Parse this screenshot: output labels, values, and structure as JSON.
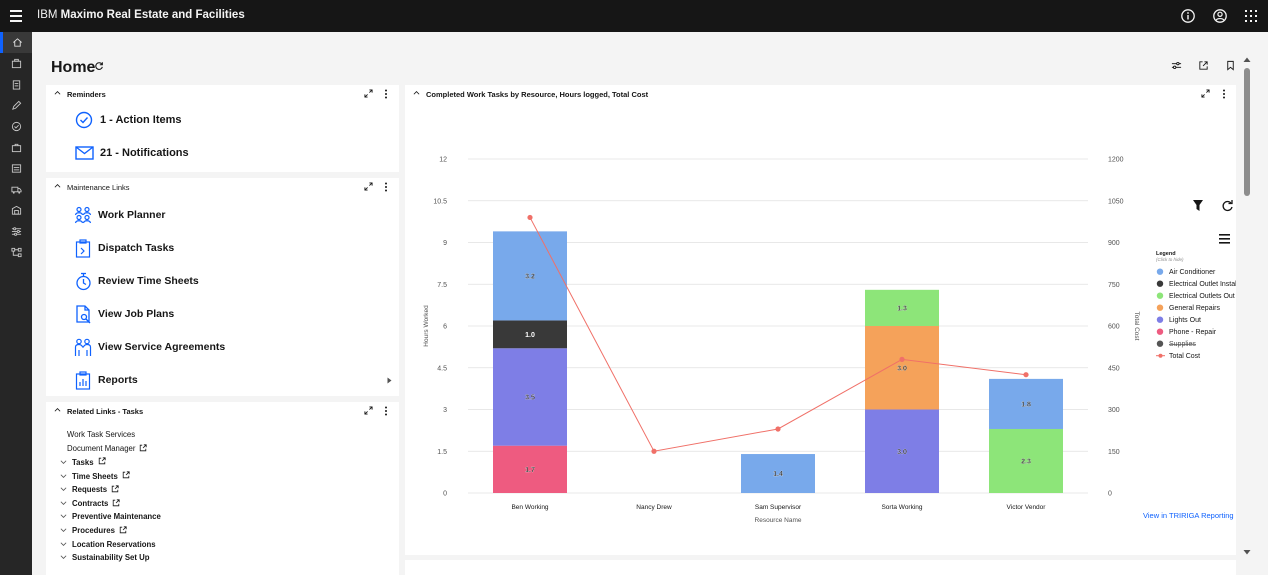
{
  "app": {
    "brand_company": "IBM",
    "brand_product": "Maximo Real Estate and Facilities"
  },
  "page": {
    "title": "Home"
  },
  "reminders": {
    "title": "Reminders",
    "items": [
      {
        "label": "1 - Action Items",
        "icon": "checkmark-circle-icon"
      },
      {
        "label": "21 - Notifications",
        "icon": "envelope-icon"
      }
    ]
  },
  "maintenance": {
    "title": "Maintenance Links",
    "items": [
      {
        "label": "Work Planner",
        "icon": "work-planner-icon"
      },
      {
        "label": "Dispatch Tasks",
        "icon": "dispatch-tasks-icon"
      },
      {
        "label": "Review Time Sheets",
        "icon": "stopwatch-icon"
      },
      {
        "label": "View Job Plans",
        "icon": "job-plans-icon"
      },
      {
        "label": "View Service Agreements",
        "icon": "service-agreements-icon"
      },
      {
        "label": "Reports",
        "icon": "reports-icon"
      }
    ]
  },
  "related": {
    "title": "Related Links - Tasks",
    "items": [
      {
        "label": "Work Task Services",
        "chevron": false,
        "external": false,
        "bold": false
      },
      {
        "label": "Document Manager",
        "chevron": false,
        "external": true,
        "bold": false
      },
      {
        "label": "Tasks",
        "chevron": true,
        "external": true,
        "bold": true
      },
      {
        "label": "Time Sheets",
        "chevron": true,
        "external": true,
        "bold": true
      },
      {
        "label": "Requests",
        "chevron": true,
        "external": true,
        "bold": true
      },
      {
        "label": "Contracts",
        "chevron": true,
        "external": true,
        "bold": true
      },
      {
        "label": "Preventive Maintenance",
        "chevron": true,
        "external": false,
        "bold": true
      },
      {
        "label": "Procedures",
        "chevron": true,
        "external": true,
        "bold": true
      },
      {
        "label": "Location Reservations",
        "chevron": true,
        "external": false,
        "bold": true
      },
      {
        "label": "Sustainability Set Up",
        "chevron": true,
        "external": false,
        "bold": true
      }
    ]
  },
  "chart_card": {
    "title": "Completed Work Tasks by Resource, Hours logged, Total Cost",
    "view_link": "View in TRIRIGA Reporting"
  },
  "chart_data": {
    "type": "bar",
    "stacked": true,
    "xlabel": "Resource Name",
    "ylabel": "Hours Worked",
    "y2label": "Total Cost",
    "ylim": [
      0,
      12
    ],
    "y2lim": [
      0,
      1200
    ],
    "yticks": [
      "0",
      "1.5",
      "3",
      "4.5",
      "6",
      "7.5",
      "9",
      "10.5",
      "12"
    ],
    "y2ticks": [
      "0",
      "150",
      "300",
      "450",
      "600",
      "750",
      "900",
      "1050",
      "1200"
    ],
    "categories": [
      "Ben Working",
      "Nancy Drew",
      "Sam Supervisor",
      "Sorta Working",
      "Victor Vendor"
    ],
    "legend_title": "Legend",
    "legend_subtitle": "(Click to hide)",
    "legend_position": "right",
    "series": [
      {
        "name": "Air Conditioner",
        "color": "#78a9eb",
        "values": [
          3.2,
          0,
          1.4,
          0,
          1.8
        ],
        "labels": [
          "3.2",
          "",
          "1.4",
          "",
          "1.8"
        ]
      },
      {
        "name": "Electrical Outlet Installati...",
        "color": "#393939",
        "values": [
          1.0,
          0,
          0,
          0,
          0
        ],
        "labels": [
          "1.0",
          "",
          "",
          "",
          ""
        ]
      },
      {
        "name": "Electrical Outlets Out",
        "color": "#8de579",
        "values": [
          0,
          0,
          0,
          1.3,
          2.3
        ],
        "labels": [
          "",
          "",
          "",
          "1.3",
          "2.3"
        ]
      },
      {
        "name": "General Repairs",
        "color": "#f5a25a",
        "values": [
          0,
          0,
          0,
          3.0,
          0
        ],
        "labels": [
          "",
          "",
          "",
          "3.0",
          ""
        ]
      },
      {
        "name": "Lights Out",
        "color": "#7e7ee6",
        "values": [
          3.5,
          0,
          0,
          3.0,
          0
        ],
        "labels": [
          "3.5",
          "",
          "",
          "3.0",
          ""
        ]
      },
      {
        "name": "Phone - Repair",
        "color": "#ee5b80",
        "values": [
          1.7,
          0,
          0,
          0,
          0
        ],
        "labels": [
          "1.7",
          "",
          "",
          "",
          ""
        ]
      },
      {
        "name": "Supplies",
        "color": "#555555",
        "values": [
          0,
          0,
          0,
          0,
          0
        ],
        "labels": [
          "",
          "",
          "",
          "",
          ""
        ],
        "hidden": true
      }
    ],
    "order_bottom_to_top": [
      "Phone - Repair",
      "Lights Out",
      "General Repairs",
      "Electrical Outlets Out",
      "Electrical Outlet Installati...",
      "Air Conditioner"
    ],
    "line": {
      "name": "Total Cost",
      "color": "#f07068",
      "values": [
        990,
        150,
        230,
        480,
        425
      ]
    },
    "grid": true
  }
}
